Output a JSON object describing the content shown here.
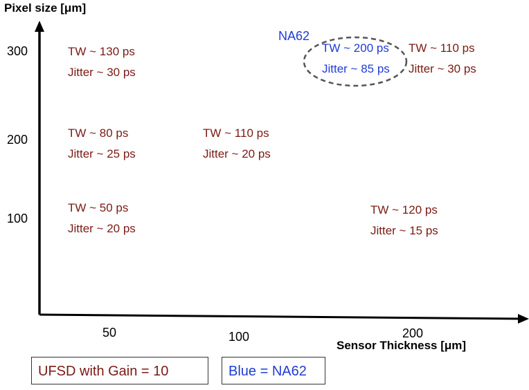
{
  "chart_data": {
    "type": "scatter",
    "title": "",
    "ylabel": "Pixel size [μm]",
    "xlabel": "Sensor Thickness [μm]",
    "y_ticks": [
      "300",
      "200",
      "100"
    ],
    "x_ticks": [
      "50",
      "100",
      "200"
    ],
    "grid": false,
    "colors": {
      "red": "#7a1a14",
      "blue": "#1f3bd6",
      "axis": "#000000",
      "ellipse": "#555555"
    },
    "points": [
      {
        "line1": "TW ~ 130 ps",
        "line2": "Jitter ~ 30 ps",
        "color": "red"
      },
      {
        "line1": "TW ~ 200 ps",
        "line2": "Jitter ~ 85 ps",
        "color": "blue"
      },
      {
        "line1": "TW ~ 110 ps",
        "line2": "Jitter ~ 30 ps",
        "color": "red"
      },
      {
        "line1": "TW ~ 80 ps",
        "line2": "Jitter ~ 25 ps",
        "color": "red"
      },
      {
        "line1": "TW ~ 110 ps",
        "line2": "Jitter ~ 20 ps",
        "color": "red"
      },
      {
        "line1": "TW ~ 50 ps",
        "line2": "Jitter ~ 20 ps",
        "color": "red"
      },
      {
        "line1": "TW ~ 120 ps",
        "line2": "Jitter ~ 15 ps",
        "color": "red"
      }
    ],
    "annotation": "NA62",
    "legend": [
      "UFSD with Gain = 10",
      "Blue = NA62"
    ]
  }
}
